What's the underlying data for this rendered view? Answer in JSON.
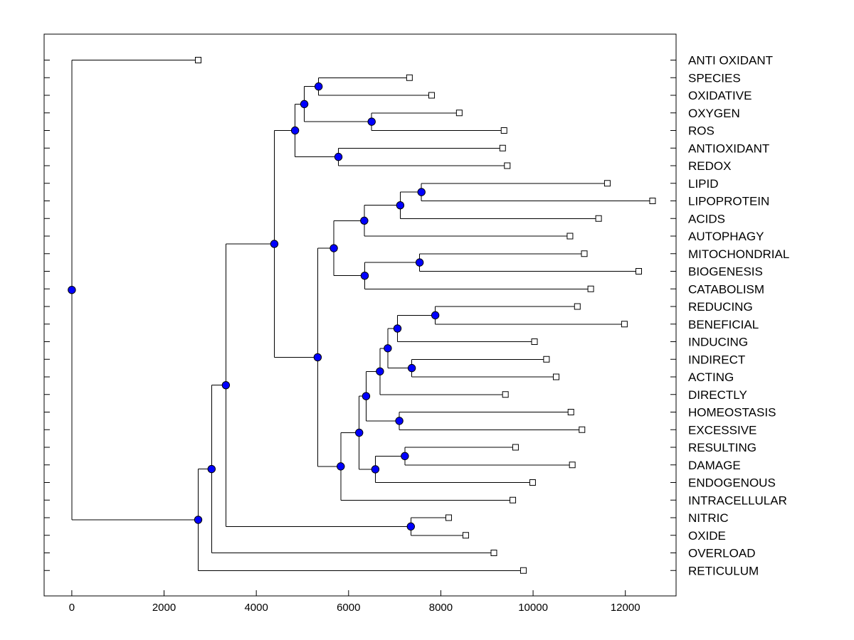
{
  "chart_data": {
    "type": "dendrogram",
    "orientation": "horizontal",
    "xlim": [
      -600,
      13100
    ],
    "xticks": [
      0,
      2000,
      4000,
      6000,
      8000,
      10000,
      12000
    ],
    "xtick_labels": [
      "0",
      "2000",
      "4000",
      "6000",
      "8000",
      "10000",
      "12000"
    ],
    "leaves": [
      {
        "label": "ANTI OXIDANT",
        "x": 2740
      },
      {
        "label": "SPECIES",
        "x": 7320
      },
      {
        "label": "OXIDATIVE",
        "x": 7800
      },
      {
        "label": "OXYGEN",
        "x": 8400
      },
      {
        "label": "ROS",
        "x": 9370
      },
      {
        "label": "ANTIOXIDANT",
        "x": 9340
      },
      {
        "label": "REDOX",
        "x": 9440
      },
      {
        "label": "LIPID",
        "x": 11610
      },
      {
        "label": "LIPOPROTEIN",
        "x": 12590
      },
      {
        "label": "ACIDS",
        "x": 11420
      },
      {
        "label": "AUTOPHAGY",
        "x": 10800
      },
      {
        "label": "MITOCHONDRIAL",
        "x": 11110
      },
      {
        "label": "BIOGENESIS",
        "x": 12290
      },
      {
        "label": "CATABOLISM",
        "x": 11250
      },
      {
        "label": "REDUCING",
        "x": 10960
      },
      {
        "label": "BENEFICIAL",
        "x": 11980
      },
      {
        "label": "INDUCING",
        "x": 10030
      },
      {
        "label": "INDIRECT",
        "x": 10290
      },
      {
        "label": "ACTING",
        "x": 10500
      },
      {
        "label": "DIRECTLY",
        "x": 9400
      },
      {
        "label": "HOMEOSTASIS",
        "x": 10820
      },
      {
        "label": "EXCESSIVE",
        "x": 11060
      },
      {
        "label": "RESULTING",
        "x": 9620
      },
      {
        "label": "DAMAGE",
        "x": 10850
      },
      {
        "label": "ENDOGENOUS",
        "x": 9990
      },
      {
        "label": "INTRACELLULAR",
        "x": 9560
      },
      {
        "label": "NITRIC",
        "x": 8170
      },
      {
        "label": "OXIDE",
        "x": 8540
      },
      {
        "label": "OVERLOAD",
        "x": 9150
      },
      {
        "label": "RETICULUM",
        "x": 9790
      }
    ],
    "merges": [
      {
        "id": "n1",
        "x": 5350,
        "children": [
          "SPECIES",
          "OXIDATIVE"
        ]
      },
      {
        "id": "n2",
        "x": 6500,
        "children": [
          "OXYGEN",
          "ROS"
        ]
      },
      {
        "id": "n3",
        "x": 5040,
        "children": [
          "n1",
          "n2"
        ]
      },
      {
        "id": "n4",
        "x": 5780,
        "children": [
          "ANTIOXIDANT",
          "REDOX"
        ]
      },
      {
        "id": "n5",
        "x": 4840,
        "children": [
          "n3",
          "n4"
        ]
      },
      {
        "id": "n6",
        "x": 7580,
        "children": [
          "LIPID",
          "LIPOPROTEIN"
        ]
      },
      {
        "id": "n7",
        "x": 7120,
        "children": [
          "n6",
          "ACIDS"
        ]
      },
      {
        "id": "n8",
        "x": 6340,
        "children": [
          "n7",
          "AUTOPHAGY"
        ]
      },
      {
        "id": "n9",
        "x": 7540,
        "children": [
          "MITOCHONDRIAL",
          "BIOGENESIS"
        ]
      },
      {
        "id": "n10",
        "x": 6350,
        "children": [
          "n9",
          "CATABOLISM"
        ]
      },
      {
        "id": "n11",
        "x": 5680,
        "children": [
          "n8",
          "n10"
        ]
      },
      {
        "id": "n12",
        "x": 7880,
        "children": [
          "REDUCING",
          "BENEFICIAL"
        ]
      },
      {
        "id": "n13",
        "x": 7060,
        "children": [
          "n12",
          "INDUCING"
        ]
      },
      {
        "id": "n14",
        "x": 7370,
        "children": [
          "INDIRECT",
          "ACTING"
        ]
      },
      {
        "id": "n15",
        "x": 6850,
        "children": [
          "n13",
          "n14"
        ]
      },
      {
        "id": "n16",
        "x": 6680,
        "children": [
          "n15",
          "DIRECTLY"
        ]
      },
      {
        "id": "n17",
        "x": 7100,
        "children": [
          "HOMEOSTASIS",
          "EXCESSIVE"
        ]
      },
      {
        "id": "n18",
        "x": 6380,
        "children": [
          "n16",
          "n17"
        ]
      },
      {
        "id": "n19",
        "x": 7220,
        "children": [
          "RESULTING",
          "DAMAGE"
        ]
      },
      {
        "id": "n20",
        "x": 6580,
        "children": [
          "n19",
          "ENDOGENOUS"
        ]
      },
      {
        "id": "n21",
        "x": 6230,
        "children": [
          "n18",
          "n20"
        ]
      },
      {
        "id": "n22",
        "x": 5830,
        "children": [
          "n21",
          "INTRACELLULAR"
        ]
      },
      {
        "id": "n23",
        "x": 5330,
        "children": [
          "n11",
          "n22"
        ]
      },
      {
        "id": "n24",
        "x": 4390,
        "children": [
          "n5",
          "n23"
        ]
      },
      {
        "id": "n25",
        "x": 7350,
        "children": [
          "NITRIC",
          "OXIDE"
        ]
      },
      {
        "id": "n26",
        "x": 3340,
        "children": [
          "n24",
          "n25"
        ]
      },
      {
        "id": "n27",
        "x": 3030,
        "children": [
          "n26",
          "OVERLOAD"
        ]
      },
      {
        "id": "n28",
        "x": 2740,
        "children": [
          "n27",
          "RETICULUM"
        ]
      },
      {
        "id": "n29",
        "x": 0,
        "children": [
          "ANTI OXIDANT",
          "n28"
        ]
      }
    ],
    "colors": {
      "node_fill": "#0000ff",
      "leaf_fill": "#ffffff",
      "line": "#000000"
    }
  }
}
